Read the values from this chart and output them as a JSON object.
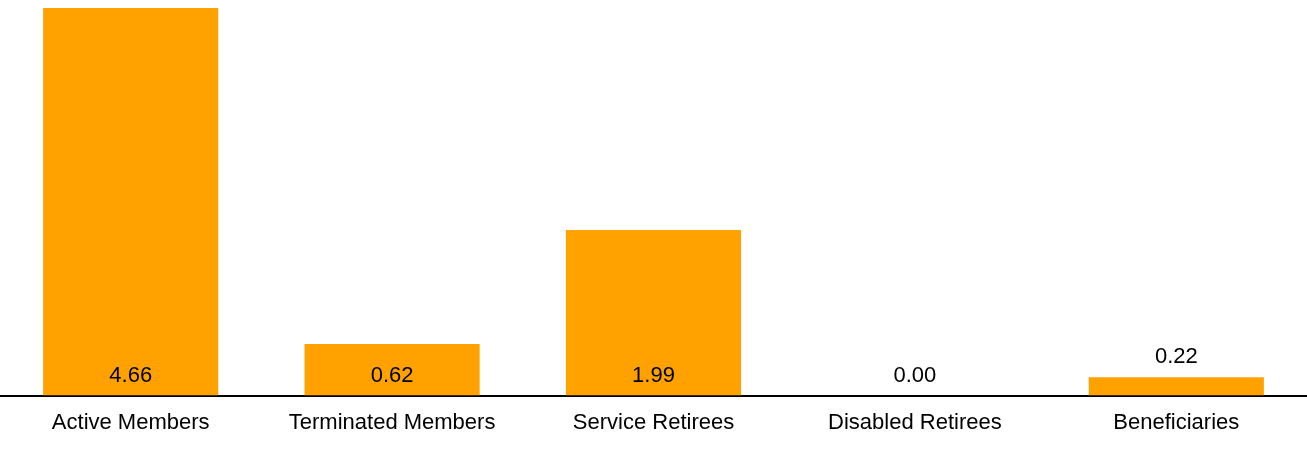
{
  "chart_data": {
    "type": "bar",
    "categories": [
      "Active Members",
      "Terminated Members",
      "Service Retirees",
      "Disabled Retirees",
      "Beneficiaries"
    ],
    "values": [
      4.66,
      0.62,
      1.99,
      0.0,
      0.22
    ],
    "value_labels": [
      "4.66",
      "0.62",
      "1.99",
      "0.00",
      "0.22"
    ],
    "color": "#ffa200",
    "grid": false,
    "legend": false
  }
}
